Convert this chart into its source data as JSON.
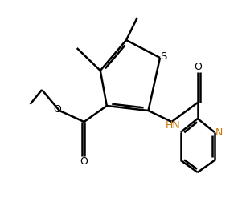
{
  "background": "#ffffff",
  "line_color": "#000000",
  "n_color": "#cc7700",
  "line_width": 1.8,
  "dbo": 0.012,
  "figsize": [
    3.06,
    2.47
  ],
  "dpi": 100,
  "xlim": [
    0.0,
    1.0
  ],
  "ylim": [
    0.0,
    1.0
  ]
}
